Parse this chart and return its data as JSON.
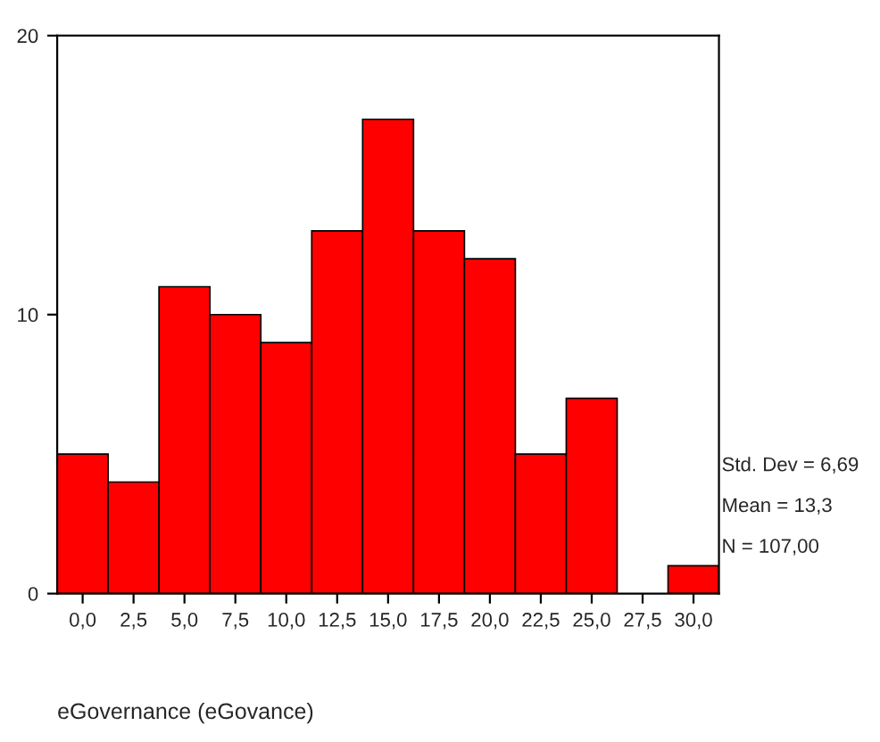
{
  "chart_data": {
    "type": "histogram",
    "xlabel": "eGovernance (eGovance)",
    "bins": [
      -1.25,
      1.25,
      3.75,
      6.25,
      8.75,
      11.25,
      13.75,
      16.25,
      18.75,
      21.25,
      23.75,
      26.25,
      28.75,
      31.25
    ],
    "values": [
      5,
      4,
      11,
      10,
      9,
      13,
      17,
      13,
      12,
      5,
      7,
      0,
      1
    ],
    "color": "#ff0000",
    "xlim": [
      -1.25,
      31.25
    ],
    "ylim": [
      0,
      20
    ],
    "xticks": [
      {
        "value": 0,
        "label": "0,0"
      },
      {
        "value": 2.5,
        "label": "2,5"
      },
      {
        "value": 5,
        "label": "5,0"
      },
      {
        "value": 7.5,
        "label": "7,5"
      },
      {
        "value": 10,
        "label": "10,0"
      },
      {
        "value": 12.5,
        "label": "12,5"
      },
      {
        "value": 15,
        "label": "15,0"
      },
      {
        "value": 17.5,
        "label": "17,5"
      },
      {
        "value": 20,
        "label": "20,0"
      },
      {
        "value": 22.5,
        "label": "22,5"
      },
      {
        "value": 25,
        "label": "25,0"
      },
      {
        "value": 27.5,
        "label": "27,5"
      },
      {
        "value": 30,
        "label": "30,0"
      }
    ],
    "yticks": [
      0,
      10,
      20
    ],
    "annotations": [
      "Std. Dev = 6,69",
      "Mean = 13,3",
      "N = 107,00"
    ],
    "grid": false,
    "legend": false
  }
}
